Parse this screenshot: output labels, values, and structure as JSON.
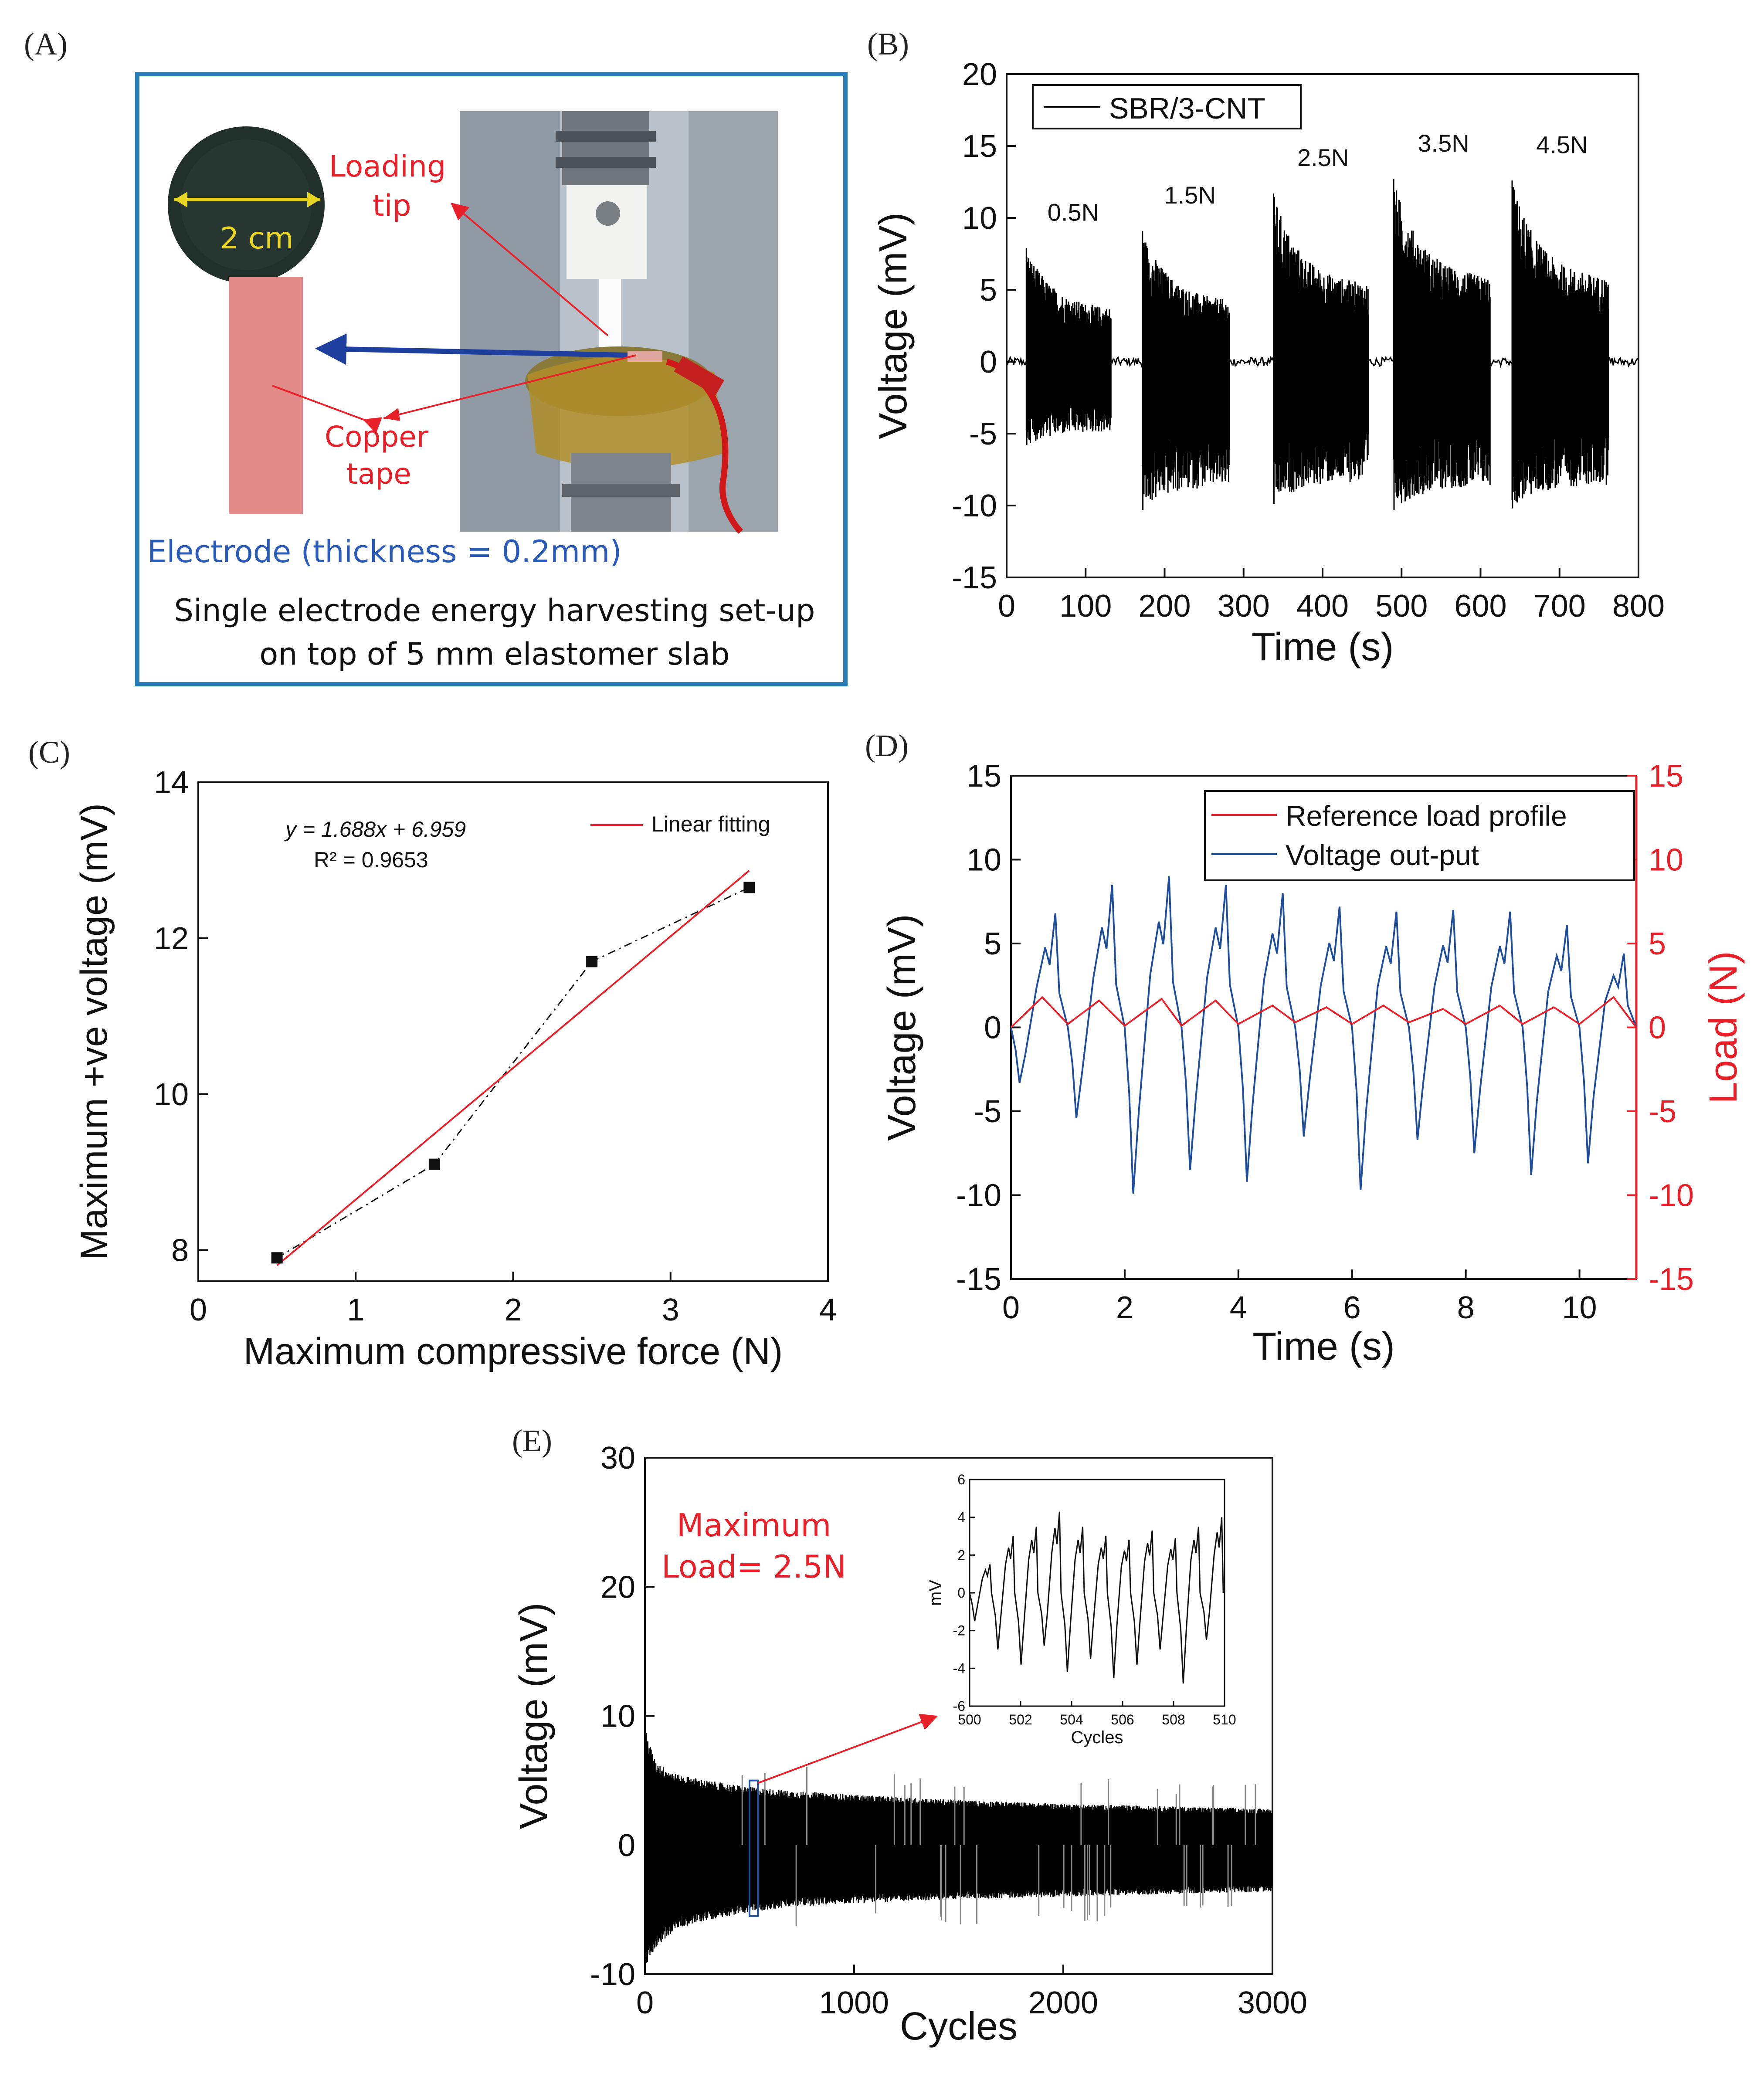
{
  "panels": {
    "a": {
      "label": "(A)",
      "diameter_label": "2 cm",
      "loading_tip_line1": "Loading",
      "loading_tip_line2": "tip",
      "copper_line1": "Copper",
      "copper_line2": "tape",
      "electrode_caption": "Electrode (thickness = 0.2mm)",
      "caption_line1": "Single electrode energy harvesting set-up",
      "caption_line2": "on top of 5 mm elastomer slab",
      "colors": {
        "frame": "#2a7db5",
        "annotation": "#e8202a",
        "electrode_text": "#2b5bb8",
        "arrow": "#1f3f9e",
        "tape": "#e28a87"
      }
    },
    "b": {
      "label": "(B)"
    },
    "c": {
      "label": "(C)"
    },
    "d": {
      "label": "(D)"
    },
    "e": {
      "label": "(E)"
    }
  },
  "chart_data": [
    {
      "panel": "B",
      "type": "line",
      "xlabel": "Time (s)",
      "ylabel": "Voltage (mV)",
      "xlim": [
        0,
        800
      ],
      "ylim": [
        -15,
        20
      ],
      "xticks": [
        0,
        100,
        200,
        300,
        400,
        500,
        600,
        700,
        800
      ],
      "yticks": [
        -15,
        -10,
        -5,
        0,
        5,
        10,
        15,
        20
      ],
      "legend": {
        "entries": [
          "SBR/3-CNT"
        ],
        "placement": "top-left"
      },
      "series_color": "#000000",
      "annotations": [
        "0.5N",
        "1.5N",
        "2.5N",
        "3.5N",
        "4.5N"
      ],
      "bursts": [
        {
          "label": "0.5N",
          "t_start": 25,
          "t_end": 132,
          "max": 7.9,
          "min": -5.8
        },
        {
          "label": "1.5N",
          "t_start": 172,
          "t_end": 282,
          "max": 9.1,
          "min": -10.3
        },
        {
          "label": "2.5N",
          "t_start": 338,
          "t_end": 458,
          "max": 11.7,
          "min": -9.9
        },
        {
          "label": "3.5N",
          "t_start": 490,
          "t_end": 612,
          "max": 12.7,
          "min": -10.3
        },
        {
          "label": "4.5N",
          "t_start": 640,
          "t_end": 762,
          "max": 12.6,
          "min": -10.2
        }
      ]
    },
    {
      "panel": "C",
      "type": "scatter",
      "xlabel": "Maximum compressive force (N)",
      "ylabel": "Maximum +ve voltage (mV)",
      "xlim": [
        0,
        4
      ],
      "ylim": [
        7.6,
        14
      ],
      "xticks": [
        0,
        1,
        2,
        3,
        4
      ],
      "yticks": [
        8,
        10,
        12,
        14
      ],
      "points": {
        "x": [
          0.5,
          1.5,
          2.5,
          3.5
        ],
        "y": [
          7.9,
          9.1,
          11.7,
          12.65
        ]
      },
      "fit": {
        "name": "Linear fitting",
        "slope": 1.688,
        "intercept": 6.959,
        "x_range": [
          0.5,
          3.5
        ],
        "color": "#e8202a"
      },
      "equation_text": "y = 1.688x + 6.959",
      "r2_text": "R² = 0.9653",
      "legend": {
        "entries": [
          "Linear fitting"
        ],
        "placement": "top-right"
      }
    },
    {
      "panel": "D",
      "type": "line",
      "xlabel": "Time (s)",
      "ylabel": "Voltage (mV)",
      "y2label": "Load (N)",
      "xlim": [
        0,
        11
      ],
      "ylim": [
        -15,
        15
      ],
      "y2lim": [
        -15,
        15
      ],
      "xticks": [
        0,
        2,
        4,
        6,
        8,
        10
      ],
      "yticks": [
        -15,
        -10,
        -5,
        0,
        5,
        10,
        15
      ],
      "y2ticks": [
        -15,
        -10,
        -5,
        0,
        5,
        10,
        15
      ],
      "legend": {
        "entries": [
          "Reference load profile",
          "Voltage out-put"
        ],
        "placement": "top-right"
      },
      "series": [
        {
          "name": "Reference load profile",
          "color": "#e8202a",
          "x": [
            0,
            0.55,
            1.0,
            1.55,
            2.0,
            2.65,
            3.0,
            3.6,
            4.0,
            4.6,
            5.0,
            5.55,
            6.0,
            6.55,
            7.0,
            7.6,
            8.0,
            8.6,
            9.0,
            9.55,
            10.0,
            10.6,
            11.0
          ],
          "y": [
            0,
            1.8,
            0.2,
            1.6,
            0.1,
            1.7,
            0.1,
            1.6,
            0.2,
            1.3,
            0.3,
            1.2,
            0.2,
            1.3,
            0.3,
            1.1,
            0.2,
            1.3,
            0.2,
            1.2,
            0.2,
            1.8,
            0
          ]
        },
        {
          "name": "Voltage out-put",
          "color": "#1f4e9c",
          "cycle_peaks": [
            6.8,
            8.5,
            9.0,
            8.5,
            8.0,
            7.2,
            6.9,
            7.0,
            6.9,
            6.1,
            4.4
          ],
          "cycle_troughs": [
            -3.3,
            -5.4,
            -9.9,
            -8.5,
            -9.2,
            -6.5,
            -9.7,
            -6.7,
            -7.5,
            -8.8,
            -8.1
          ]
        }
      ]
    },
    {
      "panel": "E",
      "type": "area",
      "xlabel": "Cycles",
      "ylabel": "Voltage (mV)",
      "xlim": [
        0,
        3000
      ],
      "ylim": [
        -10,
        30
      ],
      "xticks": [
        0,
        1000,
        2000,
        3000
      ],
      "yticks": [
        -10,
        0,
        10,
        20,
        30
      ],
      "envelope": {
        "x": [
          0,
          50,
          150,
          300,
          500,
          700,
          1000,
          1500,
          2000,
          2500,
          3000
        ],
        "upper": [
          9.0,
          6.5,
          5.5,
          5.0,
          4.5,
          4.2,
          3.9,
          3.5,
          3.2,
          3.0,
          2.8
        ],
        "lower": [
          -9.5,
          -8.0,
          -6.5,
          -5.8,
          -5.2,
          -4.8,
          -4.5,
          -4.2,
          -4.0,
          -3.8,
          -3.6
        ]
      },
      "annotation_line1": "Maximum",
      "annotation_line2": "Load= 2.5N",
      "annotation_color": "#e8202a",
      "highlight": {
        "x_range": [
          500,
          540
        ],
        "y_range": [
          -5.5,
          5.0
        ],
        "color": "#1f4e9c"
      },
      "inset": {
        "xlabel": "Cycles",
        "ylabel": "mV",
        "xlim": [
          500,
          510
        ],
        "ylim": [
          -6,
          6
        ],
        "xticks": [
          500,
          502,
          504,
          506,
          508,
          510
        ],
        "yticks": [
          -6,
          -4,
          -2,
          0,
          2,
          4,
          6
        ],
        "cycle_peaks": [
          1.5,
          3.0,
          3.5,
          4.3,
          3.5,
          3.0,
          2.8,
          3.3,
          2.9,
          3.5,
          4.0
        ],
        "cycle_troughs": [
          -1.5,
          -3.0,
          -3.8,
          -2.8,
          -4.2,
          -3.5,
          -4.5,
          -3.8,
          -3.0,
          -4.8,
          -2.5
        ]
      }
    }
  ]
}
